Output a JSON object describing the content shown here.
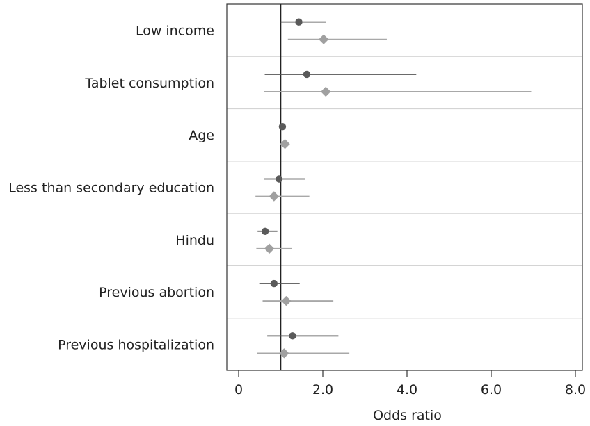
{
  "chart_data": {
    "type": "forest-plot",
    "xlabel": "Odds ratio",
    "xlim": [
      0,
      8.0
    ],
    "xticks": [
      0,
      2.0,
      4.0,
      6.0,
      8.0
    ],
    "xtick_labels": [
      "0",
      "2.0",
      "4.0",
      "6.0",
      "8.0"
    ],
    "reference_line": 1.0,
    "grid": "horizontal separators between categories",
    "categories": [
      "Low income",
      "Tablet consumption",
      "Age",
      "Less than secondary education",
      "Hindu",
      "Previous abortion",
      "Previous hospitalization"
    ],
    "series": [
      {
        "marker": "circle",
        "color": "#5a5a5a",
        "points": [
          {
            "or": 1.43,
            "low": 1.0,
            "high": 2.07
          },
          {
            "or": 1.62,
            "low": 0.62,
            "high": 4.22
          },
          {
            "or": 1.04,
            "low": 0.99,
            "high": 1.09
          },
          {
            "or": 0.96,
            "low": 0.6,
            "high": 1.57
          },
          {
            "or": 0.63,
            "low": 0.45,
            "high": 0.92
          },
          {
            "or": 0.84,
            "low": 0.49,
            "high": 1.45
          },
          {
            "or": 1.28,
            "low": 0.68,
            "high": 2.37
          }
        ]
      },
      {
        "marker": "diamond",
        "color": "#a0a0a0",
        "points": [
          {
            "or": 2.02,
            "low": 1.17,
            "high": 3.52
          },
          {
            "or": 2.07,
            "low": 0.61,
            "high": 6.95
          },
          {
            "or": 1.1,
            "low": 1.04,
            "high": 1.16
          },
          {
            "or": 0.84,
            "low": 0.4,
            "high": 1.68
          },
          {
            "or": 0.73,
            "low": 0.42,
            "high": 1.26
          },
          {
            "or": 1.13,
            "low": 0.57,
            "high": 2.25
          },
          {
            "or": 1.08,
            "low": 0.44,
            "high": 2.63
          }
        ]
      }
    ]
  }
}
